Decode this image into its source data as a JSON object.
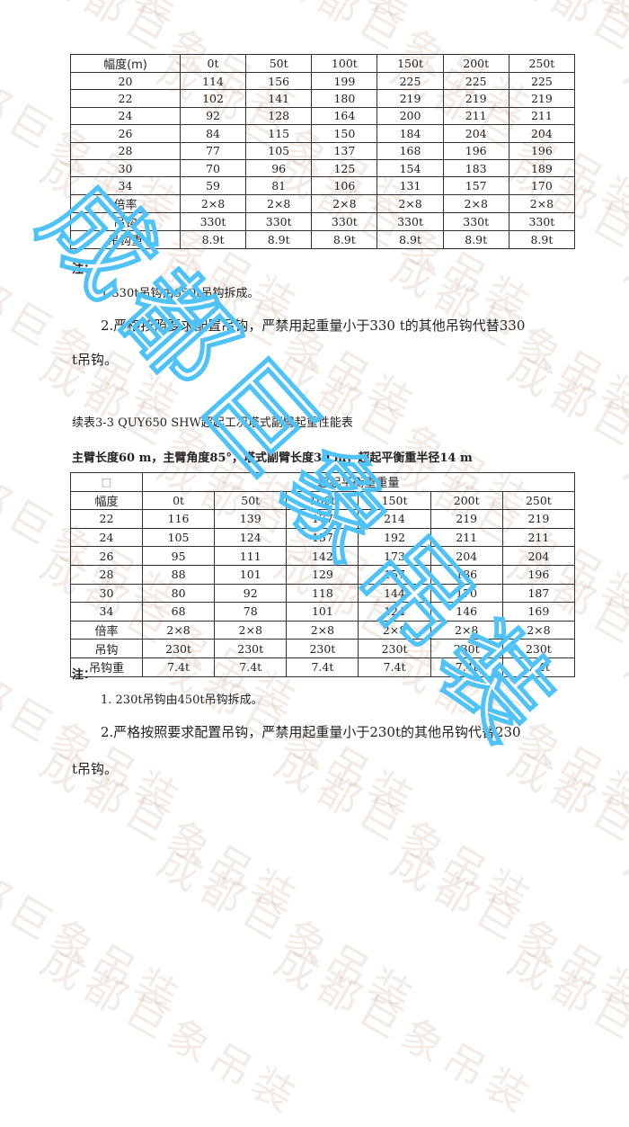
{
  "watermark": {
    "text": "成都巨象吊装",
    "color": "#4FC3F7"
  },
  "table1": {
    "header": [
      "幅度(m)",
      "0t",
      "50t",
      "100t",
      "150t",
      "200t",
      "250t"
    ],
    "rows": [
      [
        "20",
        "114",
        "156",
        "199",
        "225",
        "225",
        "225"
      ],
      [
        "22",
        "102",
        "141",
        "180",
        "219",
        "219",
        "219"
      ],
      [
        "24",
        "92",
        "128",
        "164",
        "200",
        "211",
        "211"
      ],
      [
        "26",
        "84",
        "115",
        "150",
        "184",
        "204",
        "204"
      ],
      [
        "28",
        "77",
        "105",
        "137",
        "168",
        "196",
        "196"
      ],
      [
        "30",
        "70",
        "96",
        "125",
        "154",
        "183",
        "189"
      ],
      [
        "34",
        "59",
        "81",
        "106",
        "131",
        "157",
        "170"
      ],
      [
        "倍率",
        "2×8",
        "2×8",
        "2×8",
        "2×8",
        "2×8",
        "2×8"
      ],
      [
        "吊钩",
        "330t",
        "330t",
        "330t",
        "330t",
        "330t",
        "330t"
      ],
      [
        "吊钩重",
        "8.9t",
        "8.9t",
        "8.9t",
        "8.9t",
        "8.9t",
        "8.9t"
      ]
    ]
  },
  "notes1": {
    "heading": "注：",
    "item1": "1.330t吊钩由650t吊钩拆成。",
    "item2": "2.严格按照要求配置吊钩，严禁用起重量小于330 t的其他吊钩代替330",
    "item2_cont": "t吊钩。"
  },
  "table2": {
    "caption": "续表3-3 QUY650 SHW超起工况塔式副臂起重性能表",
    "subtitle": "主臂长度60 m，主臂角度85°，塔式副臂长度30 m，超起平衡重半径14 m",
    "corner": "□",
    "group_header": "超起平衡重重量",
    "header": [
      "幅度",
      "0t",
      "50t",
      "100t",
      "150t",
      "200t",
      "250t"
    ],
    "rows": [
      [
        "22",
        "116",
        "139",
        "177",
        "214",
        "219",
        "219"
      ],
      [
        "24",
        "105",
        "124",
        "157",
        "192",
        "211",
        "211"
      ],
      [
        "26",
        "95",
        "111",
        "142",
        "173",
        "204",
        "204"
      ],
      [
        "28",
        "88",
        "101",
        "129",
        "157",
        "186",
        "196"
      ],
      [
        "30",
        "80",
        "92",
        "118",
        "144",
        "170",
        "187"
      ],
      [
        "34",
        "68",
        "78",
        "101",
        "124",
        "146",
        "169"
      ],
      [
        "倍率",
        "2×8",
        "2×8",
        "2×8",
        "2×8",
        "2×8",
        "2×8"
      ],
      [
        "吊钩",
        "230t",
        "230t",
        "230t",
        "230t",
        "230t",
        "230t"
      ],
      [
        "吊钩重",
        "7.4t",
        "7.4t",
        "7.4t",
        "7.4t",
        "7.4t",
        "7.4t"
      ]
    ]
  },
  "notes2": {
    "heading": "注：",
    "item1": "1. 230t吊钩由450t吊钩拆成。",
    "item2": "2.严格按照要求配置吊钩，严禁用起重量小于230t的其他吊钩代替230",
    "item2_cont": "t吊钩。"
  }
}
